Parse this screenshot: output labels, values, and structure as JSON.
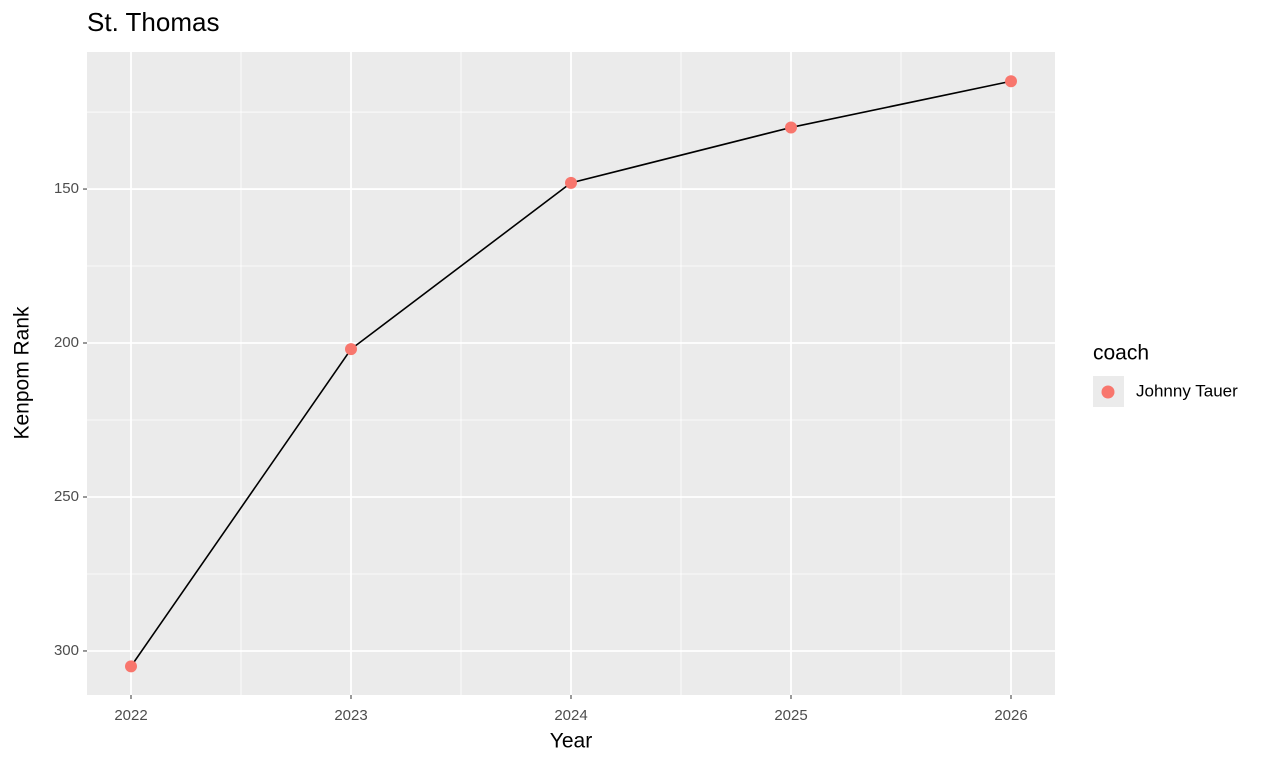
{
  "chart_data": {
    "type": "line",
    "title": "St. Thomas",
    "x_label": "Year",
    "y_label": "Kenpom Rank",
    "x": [
      2022,
      2023,
      2024,
      2025,
      2026
    ],
    "series": [
      {
        "name": "Johnny Tauer",
        "color": "#F8766D",
        "values": [
          305,
          202,
          148,
          130,
          115
        ]
      }
    ],
    "line_color": "#000000",
    "legend_title": "coach",
    "legend_position": "right",
    "xlim": [
      2021.8,
      2026.2
    ],
    "xticks": [
      2022,
      2023,
      2024,
      2025,
      2026
    ],
    "ylim": [
      105.5,
      314.3
    ],
    "yticks": [
      150,
      200,
      250,
      300
    ],
    "y_reversed": true,
    "grid": true
  }
}
